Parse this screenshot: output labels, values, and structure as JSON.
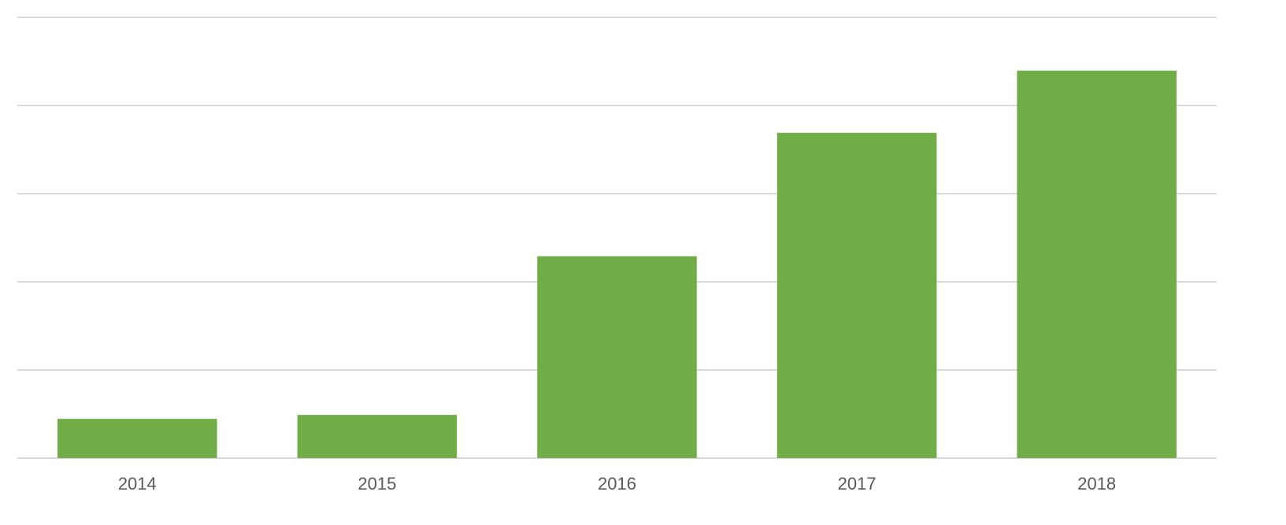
{
  "chart_data": {
    "type": "bar",
    "categories": [
      "2014",
      "2015",
      "2016",
      "2017",
      "2018"
    ],
    "values": [
      8.9,
      9.8,
      45.8,
      73.8,
      87.9
    ],
    "ylim": [
      0,
      100
    ],
    "y_gridlines": [
      0,
      20,
      40,
      60,
      80,
      100
    ],
    "grid": true,
    "legend": "none",
    "title": "",
    "xlabel": "",
    "ylabel": "",
    "colors": {
      "bar": "#70AD47",
      "grid": "#D9D9D9",
      "tick_text": "#595959"
    }
  }
}
